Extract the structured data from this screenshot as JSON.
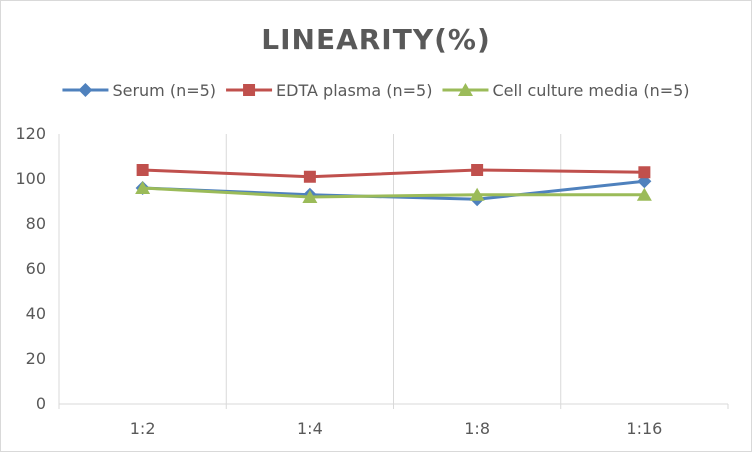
{
  "chart_data": {
    "type": "line",
    "title": "LINEARITY(%)",
    "categories": [
      "1:2",
      "1:4",
      "1:8",
      "1:16"
    ],
    "ylim": [
      0,
      120
    ],
    "yticks": [
      0,
      20,
      40,
      60,
      80,
      100,
      120
    ],
    "grid": "vertical",
    "legend_position": "top",
    "series": [
      {
        "name": "Serum (n=5)",
        "color": "#4f81bd",
        "marker": "diamond",
        "values": [
          96,
          93,
          91,
          99
        ]
      },
      {
        "name": "EDTA plasma (n=5)",
        "color": "#c0504d",
        "marker": "square",
        "values": [
          104,
          101,
          104,
          103
        ]
      },
      {
        "name": "Cell culture media (n=5)",
        "color": "#9bbb59",
        "marker": "triangle",
        "values": [
          96,
          92,
          93,
          93
        ]
      }
    ]
  }
}
